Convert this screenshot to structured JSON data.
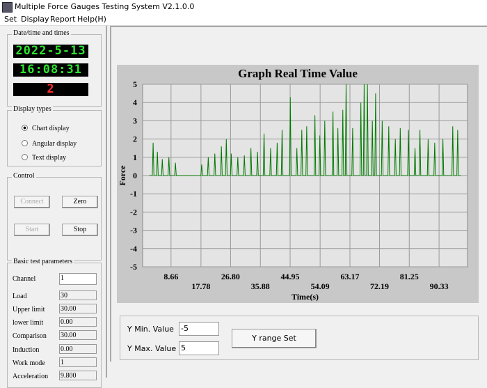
{
  "window": {
    "title": "Multiple Force Gauges Testing System V2.1.0.0"
  },
  "menu": [
    "Set",
    "Display",
    "Report",
    "Help(H)"
  ],
  "datetime": {
    "label": "Date/time and times",
    "date": "2022-5-13",
    "time": "16:08:31",
    "count": "2"
  },
  "display_types": {
    "label": "Display types",
    "options": [
      "Chart display",
      "Angular display",
      "Text display"
    ]
  },
  "control": {
    "label": "Control",
    "buttons": [
      "Connect",
      "Zero",
      "Start",
      "Stop"
    ]
  },
  "parameters": {
    "label": "Basic test parameters",
    "rows": [
      [
        "Channel",
        "1"
      ],
      [
        "Load",
        "30"
      ],
      [
        "Upper limit",
        "30.00"
      ],
      [
        "lower limit",
        "0.00"
      ],
      [
        "Comparison",
        "30.00"
      ],
      [
        "Induction",
        "0.00"
      ],
      [
        "Work mode",
        "1"
      ],
      [
        "Acceleration",
        "9.800"
      ]
    ]
  },
  "range": {
    "min_label": "Y Min. Value",
    "min_value": "-5",
    "max_label": "Y Max. Value",
    "max_value": "5",
    "button": "Y range Set"
  },
  "chart_data": {
    "type": "line",
    "title": "Graph Real Time Value",
    "xlabel": "Time(s)",
    "ylabel": "Force",
    "color": "#007a00",
    "grid": true,
    "xlim": [
      0,
      99
    ],
    "ylim": [
      -5,
      5
    ],
    "xticks": [
      8.66,
      17.78,
      {
        "value": 26.8,
        "label": "26.80"
      },
      35.88,
      44.95,
      54.09,
      63.17,
      72.19,
      81.25,
      90.33
    ],
    "yticks": [
      5,
      4,
      3,
      2,
      1,
      0,
      -1,
      -2,
      -3,
      -4,
      -5
    ],
    "x": [
      2,
      2.95,
      3.2,
      3.45,
      4.25,
      4.5,
      4.75,
      5.75,
      6,
      6.25,
      7.75,
      8,
      8.25,
      9.75,
      10,
      10.25,
      17.75,
      18,
      18.25,
      19.75,
      20,
      20.25,
      21.75,
      22,
      22.25,
      23.75,
      24,
      24.25,
      25.25,
      25.5,
      25.75,
      26.75,
      27,
      27.25,
      28.75,
      29,
      29.25,
      30.75,
      31,
      31.25,
      32.75,
      33,
      33.25,
      34.75,
      35,
      35.25,
      36.75,
      37,
      37.25,
      38.75,
      39,
      39.25,
      40.75,
      41,
      41.25,
      42.25,
      42.5,
      42.75,
      44.75,
      45,
      45.25,
      46.75,
      47,
      47.25,
      48.25,
      48.5,
      48.75,
      49.75,
      50,
      50.25,
      52.25,
      52.5,
      52.75,
      53.75,
      54,
      54.25,
      55.25,
      55.5,
      55.75,
      57.75,
      58,
      58.25,
      59.25,
      59.5,
      59.75,
      60.75,
      61,
      61.25,
      61.75,
      62,
      62.25,
      63.75,
      64,
      64.25,
      66.25,
      66.5,
      66.75,
      67.25,
      67.5,
      67.75,
      68.25,
      68.5,
      68.75,
      69.75,
      70,
      70.25,
      70.75,
      71,
      71.25,
      72.75,
      73,
      73.25,
      74.75,
      75,
      75.25,
      76.75,
      77,
      77.25,
      78.25,
      78.5,
      78.75,
      80.75,
      81,
      81.25,
      82.75,
      83,
      83.25,
      84.25,
      84.5,
      84.75,
      86.75,
      87,
      87.25,
      88.75,
      89,
      89.25,
      91.25,
      91.5,
      91.75,
      94.25,
      94.5,
      94.75,
      95.75,
      96,
      96.25,
      97
    ],
    "values": [
      0,
      0,
      1.8,
      0,
      0,
      1.3,
      0,
      0,
      0.9,
      0,
      0,
      1.0,
      0,
      0,
      0.7,
      0,
      0,
      0.6,
      0,
      0,
      1.0,
      0,
      0,
      1.2,
      0,
      0,
      1.6,
      0,
      0,
      2.0,
      0,
      0,
      1.2,
      0,
      0,
      1.0,
      0,
      0,
      1.1,
      0,
      0,
      1.5,
      0,
      0,
      1.3,
      0,
      0,
      2.3,
      0,
      0,
      1.5,
      0,
      0,
      1.8,
      0,
      0,
      2.5,
      0,
      0,
      4.3,
      0,
      0,
      1.5,
      0,
      0,
      2.5,
      0,
      0,
      2.7,
      0,
      0,
      3.3,
      0,
      0,
      2.2,
      0,
      0,
      3.0,
      0,
      0,
      3.5,
      0,
      0,
      2.6,
      0,
      0,
      3.6,
      0,
      0,
      5.0,
      0,
      0,
      2.6,
      0,
      0,
      4.0,
      0,
      0,
      5.0,
      0,
      0,
      5.0,
      0,
      0,
      3.0,
      0,
      0,
      4.5,
      0,
      0,
      3.0,
      0,
      0,
      2.7,
      0,
      0,
      2.0,
      0,
      0,
      2.6,
      0,
      0,
      2.5,
      0,
      0,
      1.5,
      0,
      0,
      2.5,
      0,
      0,
      2.0,
      0,
      0,
      1.8,
      0,
      0,
      2.0,
      0,
      0,
      2.7,
      0,
      0,
      2.5,
      0,
      0
    ]
  }
}
